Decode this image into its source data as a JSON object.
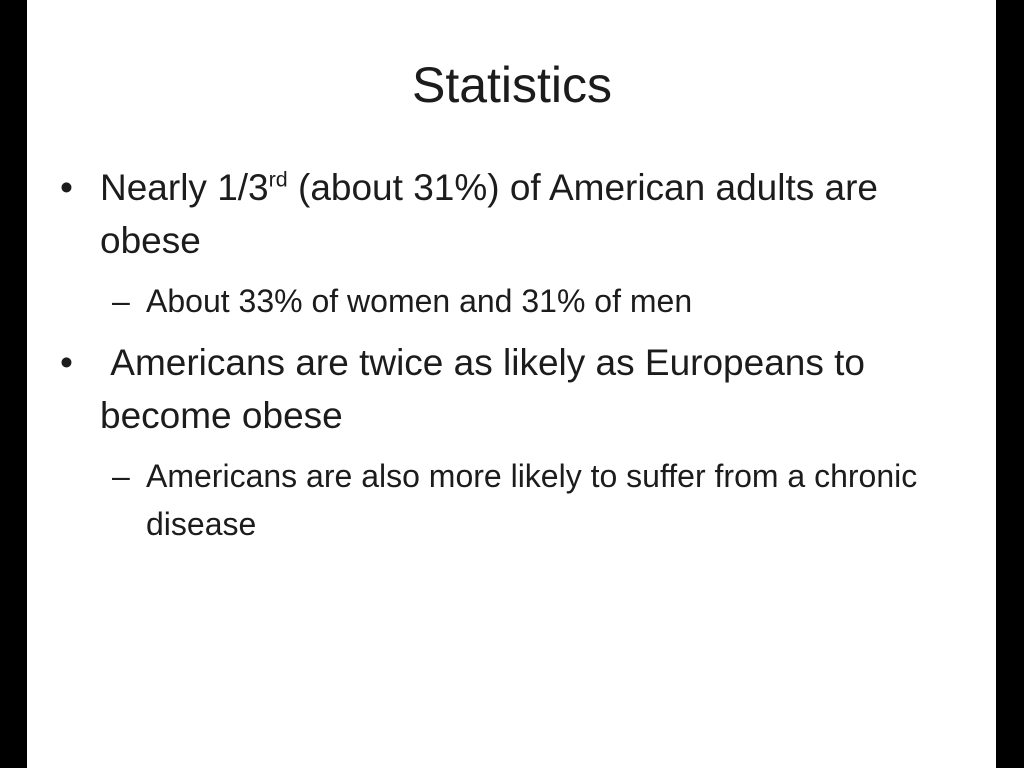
{
  "slide": {
    "title": "Statistics",
    "colors": {
      "background": "#ffffff",
      "edge_bars": "#000000",
      "text": "#1c1c1c"
    },
    "bullets": [
      {
        "level": 1,
        "marker": "•",
        "segments": {
          "pre": "Nearly 1/3",
          "sup": "rd",
          "post": " (about 31%) of American adults are obese"
        }
      },
      {
        "level": 2,
        "marker": "–",
        "text": "About 33% of women and 31% of men"
      },
      {
        "level": 1,
        "marker": "•",
        "text": " Americans are twice as likely as Europeans to become obese"
      },
      {
        "level": 2,
        "marker": "–",
        "text": "Americans are also more likely to suffer from a chronic disease"
      }
    ]
  }
}
